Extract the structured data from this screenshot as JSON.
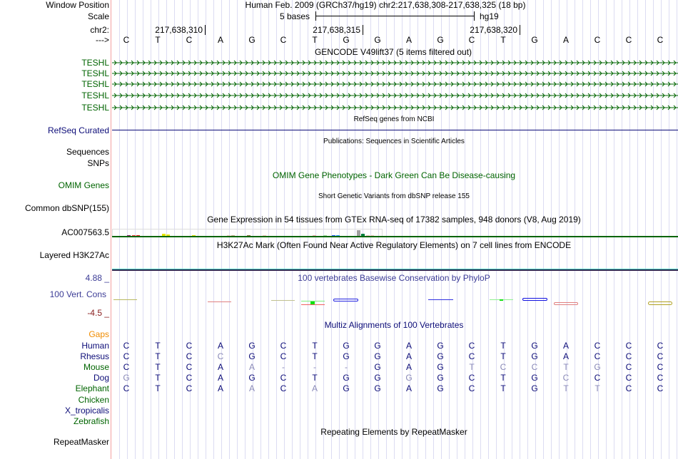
{
  "header": {
    "window_position_label": "Window Position",
    "assembly_position": "Human Feb. 2009 (GRCh37/hg19)   chr2:217,638,308-217,638,325 (18 bp)",
    "scale_label": "Scale",
    "scale_bar_text": "5 bases",
    "scale_db": "hg19",
    "chrom_label": "chr2:",
    "ticks": [
      "217,638,310",
      "217,638,315",
      "217,638,320"
    ],
    "strand_label": "--->",
    "sequence": "CTCAGCTGGAGCTGACCC"
  },
  "tracks": {
    "gencode": {
      "title": "GENCODE V49lift37 (5 items filtered out)",
      "items": [
        "TESHL",
        "TESHL",
        "TESHL",
        "TESHL",
        "TESHL"
      ],
      "color": "#006400"
    },
    "refseq": {
      "title": "RefSeq genes from NCBI",
      "label": "RefSeq Curated",
      "color": "#0c0c78"
    },
    "publications": {
      "title": "Publications: Sequences in Scientific Articles",
      "labels": [
        "Sequences",
        "SNPs"
      ]
    },
    "omim": {
      "title": "OMIM Gene Phenotypes - Dark Green Can Be Disease-causing",
      "label": "OMIM Genes",
      "color": "#006400"
    },
    "dbsnp": {
      "title": "Short Genetic Variants from dbSNP release 155",
      "label": "Common dbSNP(155)"
    },
    "gtex": {
      "title": "Gene Expression in 54 tissues from GTEx RNA-seq of 17382 samples, 948 donors (V8, Aug 2019)",
      "label": "AC007563.5"
    },
    "h3k27ac": {
      "title": "H3K27Ac Mark (Often Found Near Active Regulatory Elements) on 7 cell lines from ENCODE",
      "label": "Layered H3K27Ac"
    },
    "phylop": {
      "title": "100 vertebrates Basewise Conservation by PhyloP",
      "label": "100 Vert. Cons",
      "max": "4.88 _",
      "min": "-4.5 _",
      "color": "#3c3c96"
    },
    "multiz": {
      "title": "Multiz Alignments of 100 Vertebrates",
      "gaps_label": "Gaps",
      "species": [
        {
          "name": "Human",
          "seq": "CTCAGCTGGAGCTGACCC",
          "color": "#0c0c78"
        },
        {
          "name": "Rhesus",
          "seq": "CTCCGCTGGAGCTGACCC",
          "color": "#0c0c78"
        },
        {
          "name": "Mouse",
          "seq": "CTCAA---GAGTCCTGCC",
          "color": "#006400"
        },
        {
          "name": "Dog",
          "seq": "GTCAGCTGGGGCTGCCCC",
          "color": "#0c0c78"
        },
        {
          "name": "Elephant",
          "seq": "CTCAACAGGAGCTGTTCC",
          "color": "#006400"
        },
        {
          "name": "Chicken",
          "seq": "",
          "color": "#006400"
        },
        {
          "name": "X_tropicalis",
          "seq": "",
          "color": "#0c0c78"
        },
        {
          "name": "Zebrafish",
          "seq": "",
          "color": "#006400"
        }
      ]
    },
    "repeatmasker": {
      "title": "Repeating Elements by RepeatMasker",
      "label": "RepeatMasker"
    }
  }
}
